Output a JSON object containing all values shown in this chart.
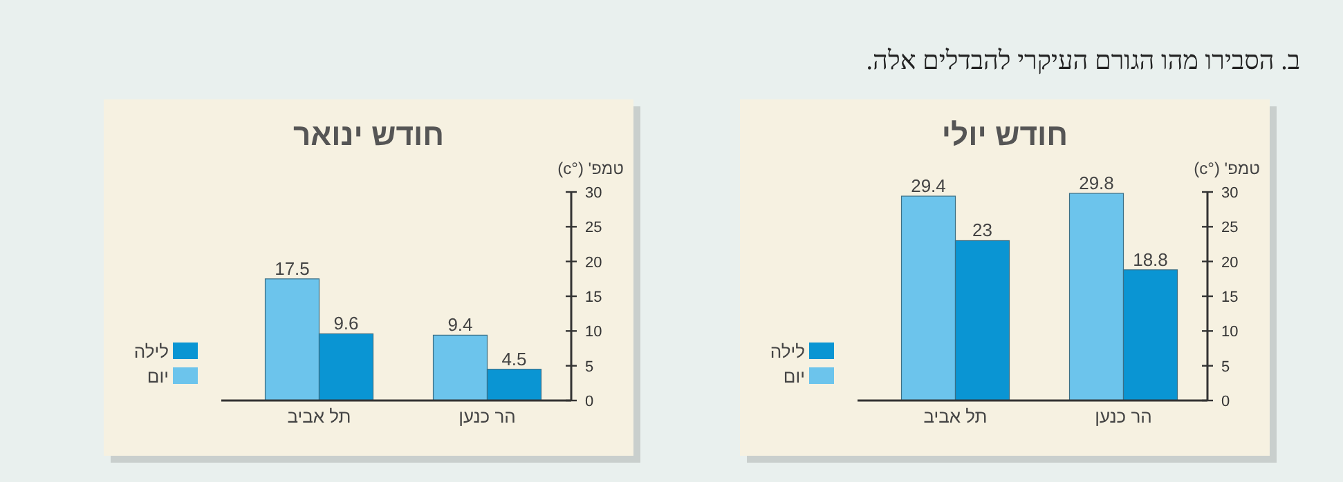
{
  "chart_data": [
    {
      "type": "bar",
      "title": "חודש יולי",
      "ylabel": "טמפ' (°c)",
      "categories": [
        "תל אביב",
        "הר כנען"
      ],
      "series": [
        {
          "name": "יום",
          "color": "#6cc4ec",
          "values": [
            29.4,
            29.8
          ]
        },
        {
          "name": "לילה",
          "color": "#0a95d3",
          "values": [
            23,
            18.8
          ]
        }
      ],
      "ylim": [
        0,
        30
      ],
      "yticks": [
        0,
        5,
        10,
        15,
        20,
        25,
        30
      ],
      "data_labels": true,
      "legend": "bottom left"
    },
    {
      "type": "bar",
      "title": "חודש ינואר",
      "ylabel": "טמפ' (°c)",
      "categories": [
        "תל אביב",
        "הר כנען"
      ],
      "series": [
        {
          "name": "יום",
          "color": "#6cc4ec",
          "values": [
            17.5,
            9.4
          ]
        },
        {
          "name": "לילה",
          "color": "#0a95d3",
          "values": [
            9.6,
            4.5
          ]
        }
      ],
      "ylim": [
        0,
        30
      ],
      "yticks": [
        0,
        5,
        10,
        15,
        20,
        25,
        30
      ],
      "data_labels": true,
      "legend": "bottom left"
    },
    {
      "type": "other",
      "annotations": [
        "ב.  הסבירו מהו הגורם העיקרי להבדלים אלה."
      ]
    }
  ]
}
